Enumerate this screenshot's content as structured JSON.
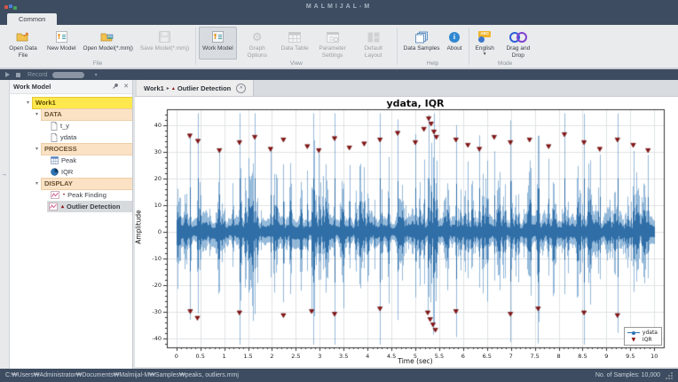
{
  "window": {
    "title": "MALMIJAL-M"
  },
  "icons": {
    "play": "▶",
    "stop": "■",
    "caret_down": "▾",
    "close": "✕",
    "arrow_right": "→",
    "abc": "ABC",
    "info": "i",
    "gear": "⚙",
    "triangle_down": "▼",
    "tab_arrow": "▸"
  },
  "colors": {
    "titlebar": "#3d4c60",
    "ribbon_bg": "#e9ebed",
    "selection_yellow": "#ffe84d",
    "section_peach": "#fbe2c5",
    "signal_blue": "#2e75b5",
    "outlier_red": "#8e1111"
  },
  "ribbon": {
    "tab": "Common",
    "groups": [
      {
        "label": "File",
        "buttons": [
          {
            "label": "Open Data File",
            "enabled": true
          },
          {
            "label": "New Model",
            "enabled": true
          },
          {
            "label": "Open Model(*.mmj)",
            "enabled": true
          },
          {
            "label": "Save Model(*.mmj)",
            "enabled": false
          }
        ]
      },
      {
        "label": "View",
        "buttons": [
          {
            "label": "Work Model",
            "enabled": true,
            "active": true
          },
          {
            "label": "Graph Options",
            "enabled": false
          },
          {
            "label": "Data Table",
            "enabled": false
          },
          {
            "label": "Parameter Settings",
            "enabled": false
          },
          {
            "label": "Default Layout",
            "enabled": false
          }
        ]
      },
      {
        "label": "Help",
        "buttons": [
          {
            "label": "Data Samples",
            "enabled": true
          },
          {
            "label": "About",
            "enabled": true
          }
        ]
      },
      {
        "label": "Mode",
        "buttons": [
          {
            "label": "English",
            "enabled": true,
            "has_dropdown": true
          },
          {
            "label": "Drag and Drop",
            "enabled": true
          }
        ]
      }
    ]
  },
  "record_bar": {
    "label": "Record"
  },
  "panel": {
    "title": "Work Model",
    "tree": {
      "root": "Work1",
      "sections": [
        {
          "label": "DATA",
          "items": [
            {
              "label": "t_y"
            },
            {
              "label": "ydata"
            }
          ]
        },
        {
          "label": "PROCESS",
          "items": [
            {
              "label": "Peak"
            },
            {
              "label": "IQR"
            }
          ]
        },
        {
          "label": "DISPLAY",
          "items": [
            {
              "label": "Peak Finding",
              "bullet": "•"
            },
            {
              "label": "Outlier Detection",
              "bullet": "▴",
              "selected": true
            }
          ]
        }
      ]
    }
  },
  "document": {
    "tab": {
      "prefix": "Work1",
      "arrow": "▸",
      "marker": "▴",
      "title": "Outlier Detection"
    }
  },
  "chart_data": {
    "type": "line",
    "title": "ydata, IQR",
    "xlabel": "Time (sec)",
    "ylabel": "Amplitude",
    "xlim": [
      -0.2,
      10.2
    ],
    "ylim": [
      -43.5,
      46
    ],
    "x_ticks": [
      0,
      0.5,
      1,
      1.5,
      2,
      2.5,
      3,
      3.5,
      4,
      4.5,
      5,
      5.5,
      6,
      6.5,
      7,
      7.5,
      8,
      8.5,
      9,
      9.5,
      10
    ],
    "y_ticks": [
      -40,
      -30,
      -20,
      -10,
      0,
      10,
      20,
      30,
      40
    ],
    "x_minor_step": 0.1,
    "y_minor_step": 2,
    "grid": true,
    "line_color": "#2e75b5",
    "outlier_color": "#8e1111",
    "legend": {
      "position": "lower right",
      "entries": [
        {
          "label": "ydata",
          "marker": "line-dot",
          "color": "#2e75b5"
        },
        {
          "label": "IQR",
          "marker": "triangle-down",
          "color": "#8e1111"
        }
      ]
    },
    "signal": {
      "name": "ydata",
      "n_samples": 10000,
      "duration_sec": 10,
      "description": "dense zero-mean noise band of about ±5 to ±9 with frequent narrow bursts up to ±43, largest burst cluster near t=5.4",
      "seed": 11,
      "base_amplitude": [
        2.5,
        7
      ],
      "burst_count": 240,
      "burst_max": 23
    },
    "outliers": {
      "name": "IQR",
      "marker": "triangle-down",
      "top": [
        [
          0.28,
          36
        ],
        [
          0.45,
          34
        ],
        [
          0.9,
          30.5
        ],
        [
          1.32,
          33.5
        ],
        [
          1.64,
          35.5
        ],
        [
          1.97,
          31
        ],
        [
          2.24,
          34.5
        ],
        [
          2.74,
          32
        ],
        [
          2.98,
          30.5
        ],
        [
          3.31,
          35
        ],
        [
          3.62,
          31.5
        ],
        [
          3.93,
          33
        ],
        [
          4.26,
          34.5
        ],
        [
          4.63,
          37
        ],
        [
          5.0,
          33.5
        ],
        [
          5.18,
          38.5
        ],
        [
          5.28,
          42.5
        ],
        [
          5.33,
          40.5
        ],
        [
          5.39,
          37.5
        ],
        [
          5.44,
          35.5
        ],
        [
          5.85,
          34.5
        ],
        [
          6.1,
          32.5
        ],
        [
          6.34,
          31
        ],
        [
          6.65,
          35.5
        ],
        [
          6.99,
          33.5
        ],
        [
          7.39,
          34.5
        ],
        [
          7.79,
          32
        ],
        [
          8.12,
          36.5
        ],
        [
          8.53,
          33.5
        ],
        [
          8.86,
          31
        ],
        [
          9.23,
          34.5
        ],
        [
          9.56,
          32.5
        ],
        [
          9.87,
          30.5
        ]
      ],
      "bottom": [
        [
          0.29,
          -30
        ],
        [
          0.44,
          -32.5
        ],
        [
          1.32,
          -30.5
        ],
        [
          2.24,
          -31.5
        ],
        [
          2.83,
          -30
        ],
        [
          3.31,
          -31
        ],
        [
          4.26,
          -29
        ],
        [
          5.26,
          -30.5
        ],
        [
          5.31,
          -33
        ],
        [
          5.37,
          -35
        ],
        [
          5.42,
          -37
        ],
        [
          5.85,
          -30
        ],
        [
          6.99,
          -31
        ],
        [
          7.57,
          -29
        ],
        [
          8.53,
          -30.5
        ],
        [
          9.23,
          -31.5
        ]
      ]
    }
  },
  "status_bar": {
    "path": "C:₩Users₩Administrator₩Documents₩Malmijal-M₩Samples₩peaks, outliers.mmj",
    "samples": "No. of Samples: 10,000"
  }
}
